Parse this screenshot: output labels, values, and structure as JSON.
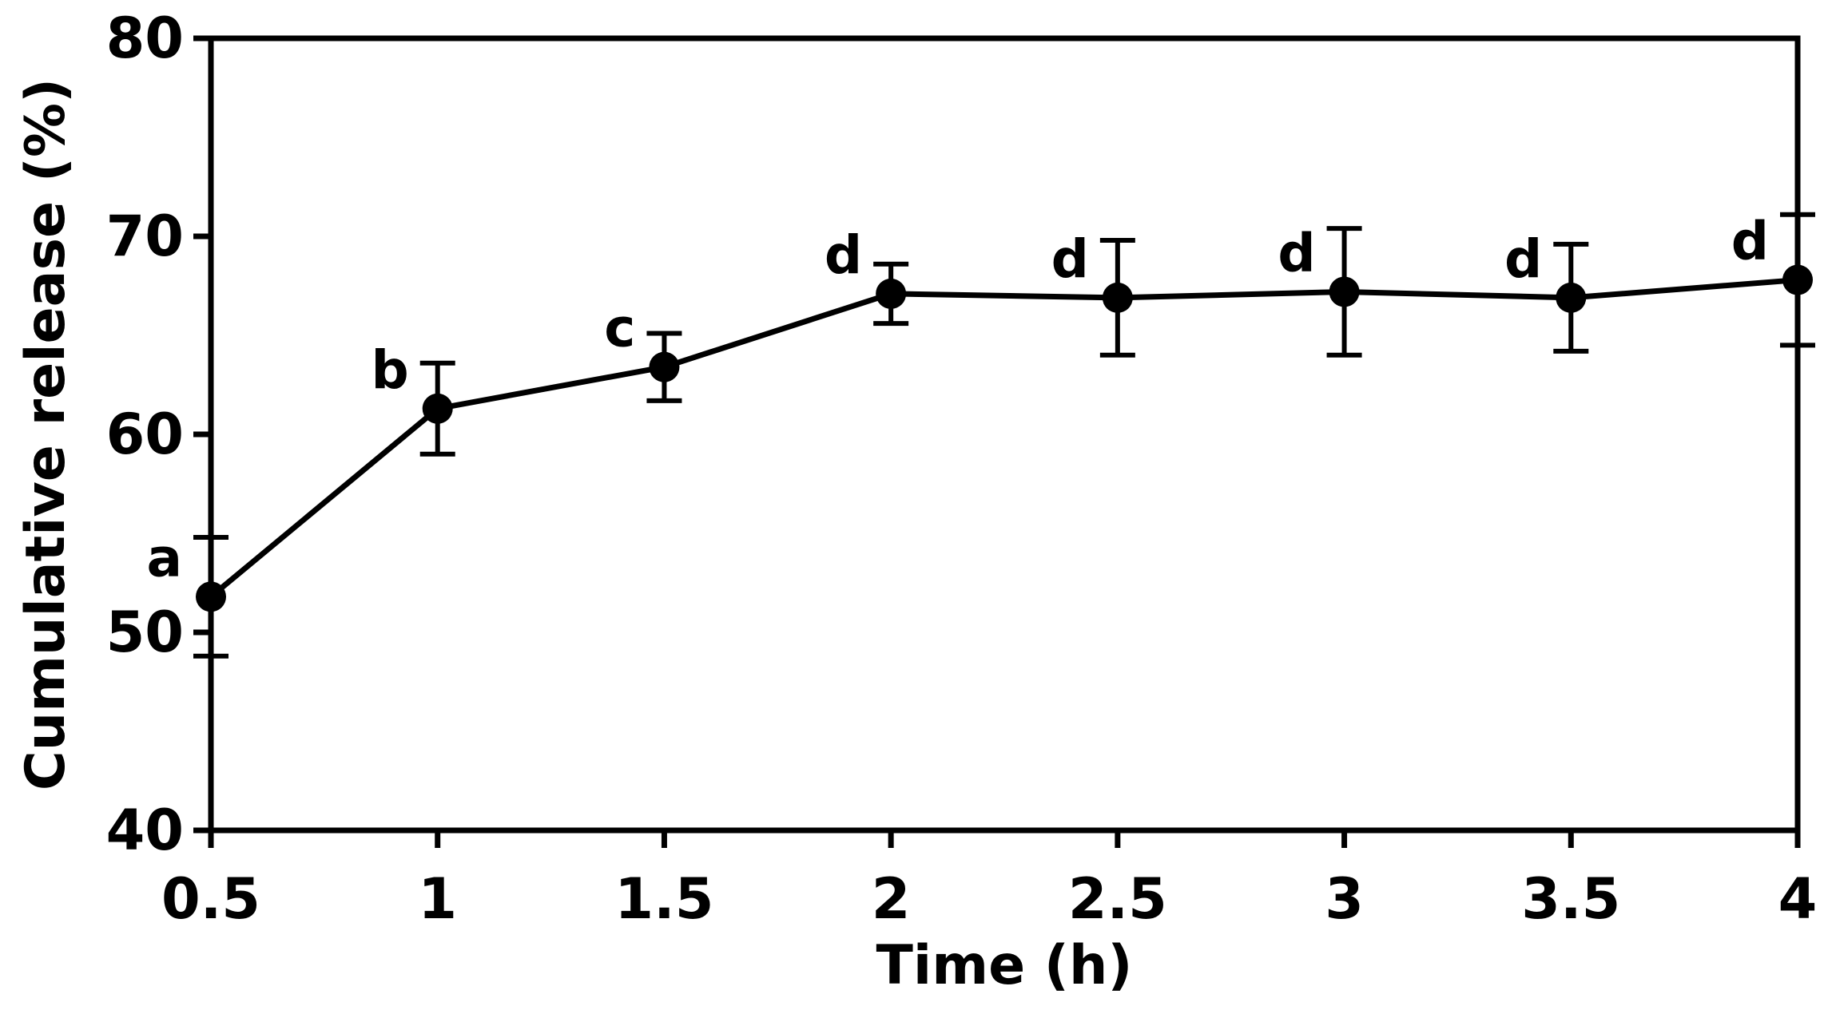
{
  "chart_data": {
    "type": "line",
    "xlabel": "Time (h)",
    "ylabel": "Cumulative release (%)",
    "xlim": [
      0.5,
      4
    ],
    "ylim": [
      40,
      80
    ],
    "x_ticks": [
      "0.5",
      "1",
      "1.5",
      "2",
      "2.5",
      "3",
      "3.5",
      "4"
    ],
    "y_ticks": [
      "40",
      "50",
      "60",
      "70",
      "80"
    ],
    "grid": false,
    "legend": "none",
    "series": [
      {
        "x": [
          0.5,
          1,
          1.5,
          2,
          2.5,
          3,
          3.5,
          4
        ],
        "y": [
          51.8,
          61.3,
          63.4,
          67.1,
          66.9,
          67.2,
          66.9,
          67.8
        ],
        "error": [
          3.0,
          2.3,
          1.7,
          1.5,
          2.9,
          3.2,
          2.7,
          3.3
        ],
        "labels": [
          "a",
          "b",
          "c",
          "d",
          "d",
          "d",
          "d",
          "d"
        ]
      }
    ],
    "colors": {
      "line": "#000000",
      "marker": "#000000",
      "axis": "#000000"
    }
  }
}
